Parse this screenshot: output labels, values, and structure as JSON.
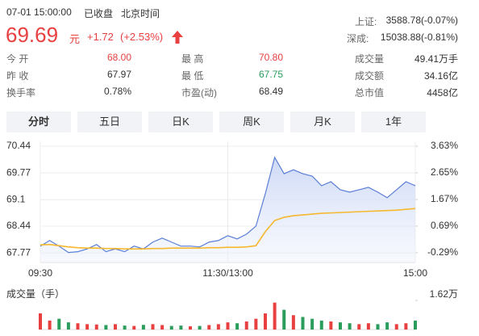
{
  "header": {
    "datetime": "07-01 15:00:00",
    "status": "已收盘",
    "timezone": "北京时间",
    "price": "69.69",
    "unit": "元",
    "change": "+1.72",
    "change_pct": "(+2.53%)",
    "indices": [
      {
        "name": "上证:",
        "value": "3588.78(-0.07%)"
      },
      {
        "name": "深成:",
        "value": "15038.88(-0.81%)"
      }
    ]
  },
  "stats": [
    [
      [
        "今 开",
        "68.00"
      ],
      [
        "最 高",
        "70.80"
      ],
      [
        "成交量",
        "49.41万手"
      ]
    ],
    [
      [
        "昨 收",
        "67.97"
      ],
      [
        "最 低",
        "67.75"
      ],
      [
        "成交额",
        "34.16亿"
      ]
    ],
    [
      [
        "换手率",
        "0.78%"
      ],
      [
        "市盈(动)",
        "68.49"
      ],
      [
        "总市值",
        "4458亿"
      ]
    ]
  ],
  "tabs": [
    "分时",
    "五日",
    "日K",
    "周K",
    "月K",
    "1年"
  ],
  "chart_data": {
    "type": "line",
    "x": [
      0,
      6,
      12,
      18,
      24,
      30,
      36,
      42,
      48,
      54,
      60,
      66,
      72,
      78,
      84,
      90,
      96,
      102,
      108,
      114,
      120,
      126,
      132,
      138,
      144,
      150,
      156,
      162,
      168,
      174,
      180,
      186,
      192,
      198,
      204,
      210,
      216,
      222,
      228,
      234,
      240
    ],
    "xlim": [
      0,
      240
    ],
    "xticks": [
      {
        "value": 0,
        "label": "09:30"
      },
      {
        "value": 120,
        "label": "11:30/13:00"
      },
      {
        "value": 240,
        "label": "15:00"
      }
    ],
    "ylim": [
      67.53,
      70.56
    ],
    "yticks": [
      67.77,
      68.44,
      69.1,
      69.77,
      70.44
    ],
    "y2lim": [
      -0.65,
      3.81
    ],
    "y2ticks": [
      {
        "value": -0.29,
        "label": "-0.29%"
      },
      {
        "value": 0.69,
        "label": "0.69%"
      },
      {
        "value": 1.67,
        "label": "1.67%"
      },
      {
        "value": 2.65,
        "label": "2.65%"
      },
      {
        "value": 3.63,
        "label": "3.63%"
      }
    ],
    "series": [
      {
        "color": "#5b7fd6",
        "values": [
          67.94,
          68.08,
          67.94,
          67.78,
          67.8,
          67.87,
          67.98,
          67.8,
          67.87,
          67.8,
          67.94,
          67.87,
          68.04,
          68.14,
          68.04,
          67.94,
          67.94,
          67.92,
          68.04,
          68.08,
          68.2,
          68.12,
          68.24,
          68.44,
          69.25,
          70.16,
          69.75,
          69.85,
          69.75,
          69.69,
          69.45,
          69.55,
          69.35,
          69.29,
          69.35,
          69.41,
          69.29,
          69.15,
          69.35,
          69.55,
          69.45
        ]
      },
      {
        "color": "#f5b82e",
        "values": [
          67.97,
          67.98,
          67.95,
          67.92,
          67.9,
          67.89,
          67.89,
          67.88,
          67.88,
          67.87,
          67.87,
          67.87,
          67.88,
          67.88,
          67.89,
          67.89,
          67.89,
          67.89,
          67.9,
          67.9,
          67.91,
          67.91,
          67.92,
          67.95,
          68.3,
          68.58,
          68.66,
          68.7,
          68.72,
          68.74,
          68.76,
          68.77,
          68.78,
          68.79,
          68.8,
          68.81,
          68.82,
          68.83,
          68.84,
          68.86,
          68.88
        ]
      }
    ],
    "volume_label": "成交量（手）",
    "volume_lim": [
      0,
      16200
    ],
    "volume_max": {
      "value": 16200,
      "label": "1.62万"
    },
    "volume": [
      9000,
      5000,
      6000,
      4000,
      3500,
      3000,
      2800,
      2500,
      3000,
      2200,
      2000,
      2600,
      3000,
      2500,
      2000,
      2200,
      1800,
      2000,
      2500,
      3000,
      4000,
      3500,
      4500,
      6000,
      9000,
      15000,
      11000,
      8000,
      7000,
      6000,
      5000,
      4500,
      4000,
      3500,
      3000,
      3500,
      3000,
      4000,
      3000,
      3500,
      5000
    ],
    "up_color": "#e84040",
    "down_color": "#2a9d5c"
  }
}
